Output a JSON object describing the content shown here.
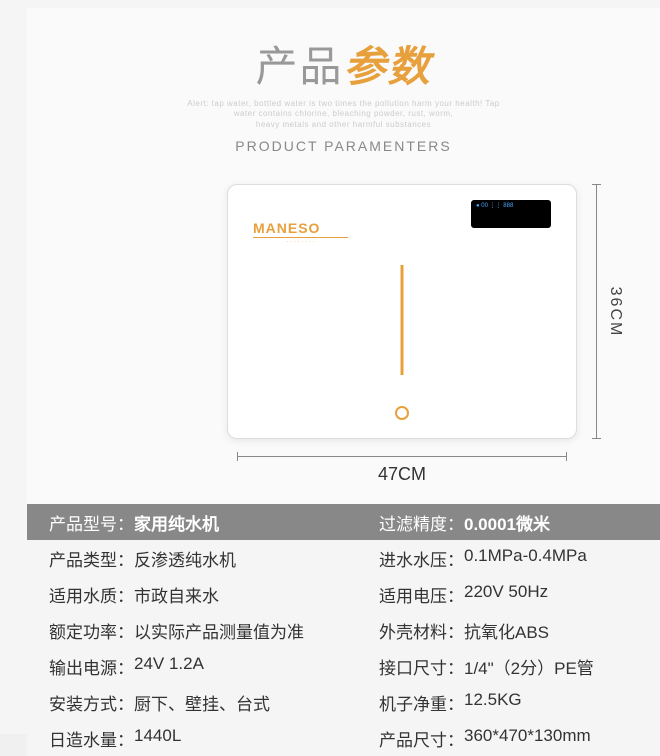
{
  "colors": {
    "accent": "#e8a03c",
    "title_gray": "#999999",
    "alert_gray": "#cccccc",
    "header_bg": "#888888",
    "row_alt": "#f5f5f5",
    "text": "#333333"
  },
  "title": {
    "cn_part1": "产品",
    "cn_part2": "参数",
    "alert_line1": "Alert: tap water, bottled water is two times the pollution harm your health! Tap",
    "alert_line2": "water contains chlorine, bleaching powder, rust, worm,",
    "alert_line3": "heavy metals and other harmful substances",
    "en": "PRODUCT PARAMENTERS"
  },
  "device": {
    "brand": "MANESO",
    "brand_sub": "· · · · · · · ·",
    "screen_text": "● 00 ⋮⋮ 888"
  },
  "dimensions": {
    "height_label": "36CM",
    "width_label": "47CM"
  },
  "specs": [
    {
      "l_label": "产品型号：",
      "l_value": "家用纯水机",
      "r_label": "过滤精度：",
      "r_value": "0.0001微米",
      "header": true
    },
    {
      "l_label": "产品类型：",
      "l_value": "反渗透纯水机",
      "r_label": "进水水压：",
      "r_value": "0.1MPa-0.4MPa"
    },
    {
      "l_label": "适用水质：",
      "l_value": "市政自来水",
      "r_label": "适用电压：",
      "r_value": "220V  50Hz"
    },
    {
      "l_label": "额定功率：",
      "l_value": "以实际产品测量值为准",
      "r_label": "外壳材料：",
      "r_value": "抗氧化ABS"
    },
    {
      "l_label": "输出电源：",
      "l_value": "24V 1.2A",
      "r_label": "接口尺寸：",
      "r_value": "1/4\"（2分）PE管"
    },
    {
      "l_label": "安装方式：",
      "l_value": "厨下、壁挂、台式",
      "r_label": "机子净重：",
      "r_value": "12.5KG"
    },
    {
      "l_label": "日造水量：",
      "l_value": "1440L",
      "r_label": "产品尺寸：",
      "r_value": "360*470*130mm"
    }
  ]
}
